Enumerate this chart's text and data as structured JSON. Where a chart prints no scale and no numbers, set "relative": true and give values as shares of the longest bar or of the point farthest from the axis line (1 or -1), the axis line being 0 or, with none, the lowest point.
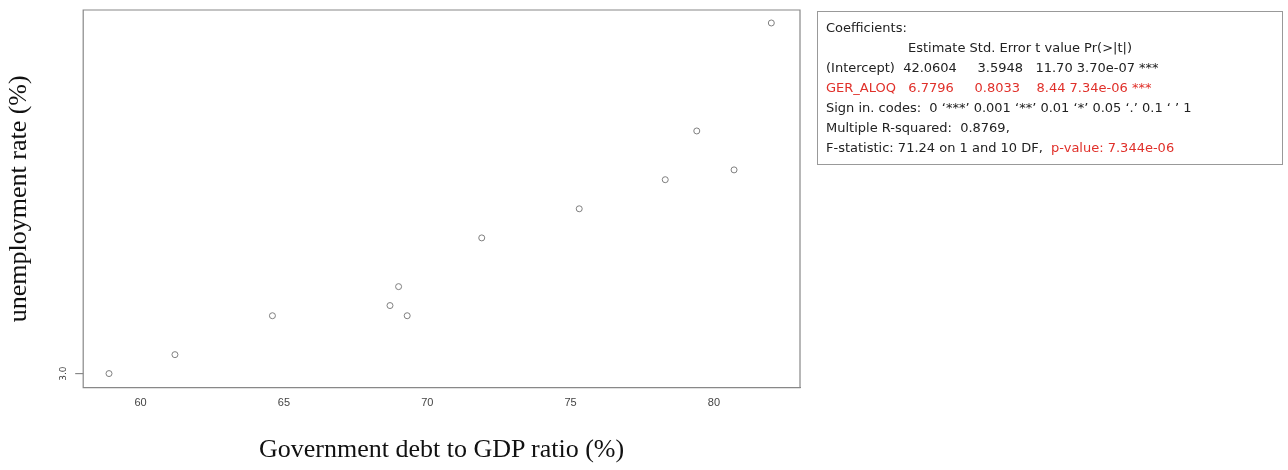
{
  "chart_data": {
    "type": "scatter",
    "xlabel": "Government debt to GDP ratio (%)",
    "ylabel": "unemployment rate (%)",
    "relative": true,
    "xlim": [
      58,
      83
    ],
    "xticks": [
      60,
      65,
      70,
      75,
      80
    ],
    "grid": false,
    "legend": false,
    "marker": "circle",
    "series": [
      {
        "color": "#808080",
        "x": [
          58.9,
          61.2,
          64.6,
          68.7,
          69.0,
          69.3,
          71.9,
          75.3,
          78.3,
          79.4,
          80.7,
          82.0
        ],
        "values": [
          0,
          0.054,
          0.165,
          0.194,
          0.248,
          0.165,
          0.387,
          0.47,
          0.553,
          0.692,
          0.581,
          1
        ]
      }
    ],
    "annotations": [
      "3.0",
      "Coefficients:",
      "Estimate Std. Error t value Pr(>|t|)",
      "(Intercept)  42.0604     3.5948   11.70 3.70e-07 ***",
      "GER_ALOQ   6.7796     0.8033    8.44 7.34e-06 ***",
      "Sign in. codes:  0 ‘***’ 0.001 ‘**’ 0.01 ‘*’ 0.05 ‘.’ 0.1 ‘ ’ 1",
      "Multiple R-squared:  0.8769,",
      "F-statistic: 71.24 on 1 and 10 DF,",
      "p-value: 7.344e-06"
    ]
  }
}
